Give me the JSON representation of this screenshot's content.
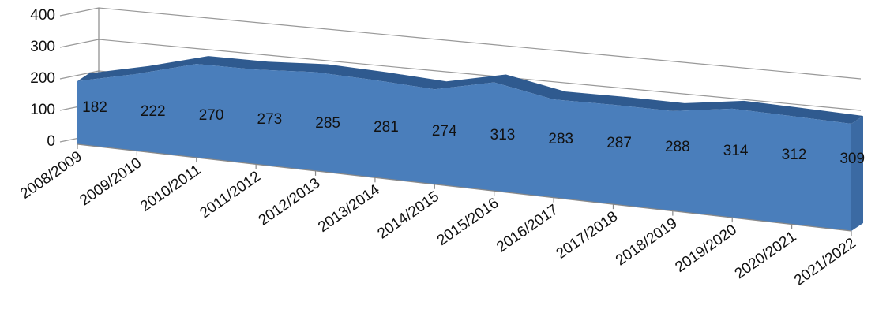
{
  "chart_data": {
    "type": "area3d",
    "categories": [
      "2008/2009",
      "2009/2010",
      "2010/2011",
      "2011/2012",
      "2012/2013",
      "2013/2014",
      "2014/2015",
      "2015/2016",
      "2016/2017",
      "2017/2018",
      "2018/2019",
      "2019/2020",
      "2020/2021",
      "2021/2022"
    ],
    "values": [
      182,
      222,
      270,
      273,
      285,
      281,
      274,
      313,
      283,
      287,
      288,
      314,
      312,
      309
    ],
    "color": "#4a7ebb",
    "ylim": [
      0,
      400
    ],
    "yticks": [
      0,
      100,
      200,
      300,
      400
    ],
    "grid": true
  }
}
